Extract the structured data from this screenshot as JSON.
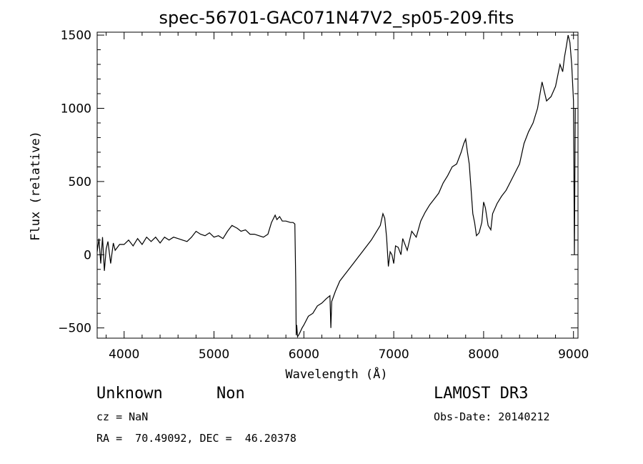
{
  "chart_data": {
    "type": "line",
    "title": "spec-56701-GAC071N47V2_sp05-209.fits",
    "xlabel": "Wavelength (Å)",
    "ylabel": "Flux (relative)",
    "xlim": [
      3700,
      9050
    ],
    "ylim": [
      -570,
      1520
    ],
    "xticks": [
      4000,
      5000,
      6000,
      7000,
      8000,
      9000
    ],
    "yticks": [
      -500,
      0,
      500,
      1000,
      1500
    ],
    "xtick_labels": [
      "4000",
      "5000",
      "6000",
      "7000",
      "8000",
      "9000"
    ],
    "ytick_labels": [
      "−500",
      "0",
      "500",
      "1000",
      "1500"
    ],
    "grid": false,
    "series": [
      {
        "name": "spectrum",
        "x": [
          3700,
          3720,
          3740,
          3760,
          3780,
          3800,
          3820,
          3850,
          3880,
          3900,
          3950,
          4000,
          4050,
          4100,
          4150,
          4200,
          4250,
          4300,
          4350,
          4400,
          4450,
          4500,
          4550,
          4600,
          4650,
          4700,
          4750,
          4800,
          4850,
          4900,
          4950,
          5000,
          5050,
          5100,
          5150,
          5200,
          5230,
          5260,
          5300,
          5350,
          5400,
          5450,
          5500,
          5550,
          5600,
          5640,
          5680,
          5700,
          5730,
          5760,
          5800,
          5850,
          5880,
          5900,
          5910,
          5915,
          5920,
          5930,
          5950,
          5980,
          6000,
          6050,
          6100,
          6150,
          6200,
          6250,
          6290,
          6300,
          6310,
          6350,
          6400,
          6450,
          6500,
          6550,
          6600,
          6650,
          6700,
          6750,
          6800,
          6850,
          6880,
          6900,
          6920,
          6940,
          6960,
          6980,
          7000,
          7020,
          7050,
          7080,
          7100,
          7150,
          7200,
          7250,
          7300,
          7350,
          7400,
          7450,
          7500,
          7550,
          7600,
          7650,
          7700,
          7750,
          7780,
          7800,
          7820,
          7840,
          7860,
          7880,
          7900,
          7920,
          7950,
          7980,
          8000,
          8020,
          8050,
          8080,
          8100,
          8150,
          8200,
          8250,
          8300,
          8350,
          8400,
          8450,
          8500,
          8550,
          8600,
          8650,
          8700,
          8750,
          8800,
          8850,
          8880,
          8900,
          8920,
          8940,
          8960,
          8980,
          9000,
          9010,
          9020
        ],
        "y": [
          20,
          110,
          -60,
          120,
          -110,
          40,
          90,
          -60,
          80,
          30,
          70,
          70,
          100,
          60,
          110,
          70,
          120,
          90,
          120,
          80,
          120,
          100,
          120,
          110,
          100,
          90,
          120,
          160,
          140,
          130,
          150,
          120,
          130,
          110,
          160,
          200,
          190,
          180,
          160,
          170,
          140,
          140,
          130,
          120,
          140,
          220,
          270,
          240,
          260,
          230,
          230,
          220,
          220,
          210,
          -200,
          -550,
          -480,
          -560,
          -540,
          -500,
          -480,
          -420,
          -400,
          -350,
          -330,
          -300,
          -280,
          -500,
          -320,
          -250,
          -180,
          -140,
          -100,
          -60,
          -20,
          20,
          60,
          100,
          150,
          200,
          280,
          250,
          120,
          -80,
          20,
          0,
          -60,
          60,
          50,
          0,
          110,
          30,
          160,
          120,
          230,
          290,
          340,
          380,
          420,
          490,
          540,
          600,
          620,
          700,
          760,
          790,
          700,
          620,
          450,
          280,
          220,
          130,
          150,
          220,
          360,
          320,
          200,
          170,
          280,
          350,
          400,
          440,
          500,
          560,
          620,
          760,
          840,
          900,
          1000,
          1180,
          1050,
          1080,
          1150,
          1300,
          1250,
          1350,
          1420,
          1500,
          1450,
          1300,
          1050,
          0,
          1000
        ]
      }
    ]
  },
  "info": {
    "object_class": "Unknown",
    "object_subclass": "Non",
    "survey": "LAMOST DR3",
    "cz_line": "cz = NaN",
    "obs_date_line": "Obs-Date: 20140212",
    "coords_line": "RA =  70.49092, DEC =  46.20378"
  }
}
